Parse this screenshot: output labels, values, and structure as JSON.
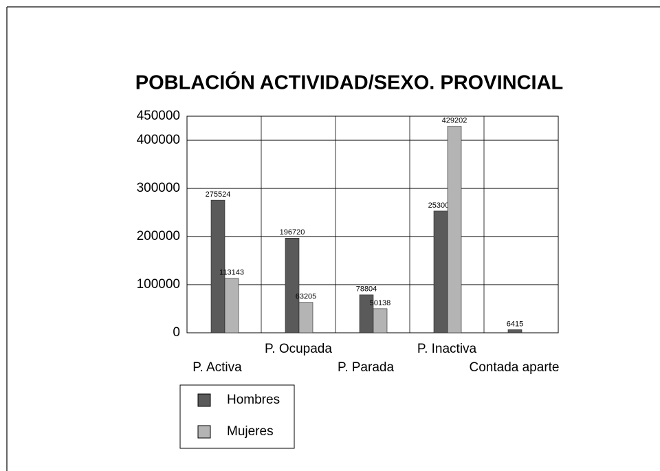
{
  "chart_data": {
    "type": "bar",
    "title": "POBLACIÓN ACTIVIDAD/SEXO. PROVINCIAL",
    "categories": [
      "P. Activa",
      "P. Ocupada",
      "P. Parada",
      "P. Inactiva",
      "Contada aparte"
    ],
    "series": [
      {
        "name": "Hombres",
        "color": "#5a5a5a",
        "values": [
          275524,
          196720,
          78804,
          253000,
          6415
        ]
      },
      {
        "name": "Mujeres",
        "color": "#b4b4b4",
        "values": [
          113143,
          63205,
          50138,
          429202,
          null
        ]
      }
    ],
    "ylim": [
      0,
      450000
    ],
    "yticks": [
      0,
      100000,
      200000,
      300000,
      400000,
      450000
    ],
    "grid": true
  }
}
